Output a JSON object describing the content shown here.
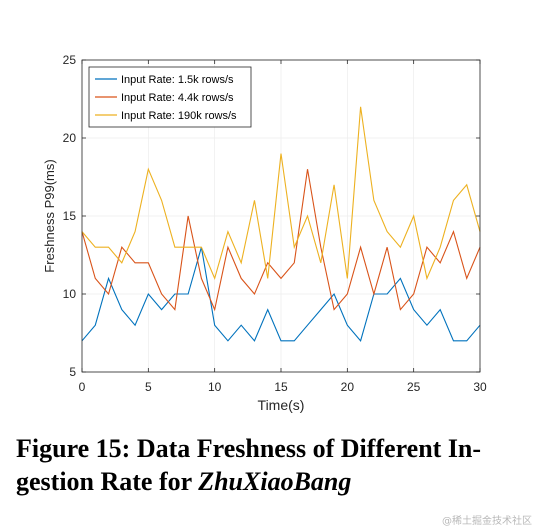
{
  "chart_data": {
    "type": "line",
    "xlabel": "Time(s)",
    "ylabel": "Freshness P99(ms)",
    "xlim": [
      0,
      30
    ],
    "ylim": [
      5,
      25
    ],
    "xticks": [
      0,
      5,
      10,
      15,
      20,
      25,
      30
    ],
    "yticks": [
      5,
      10,
      15,
      20,
      25
    ],
    "grid": true,
    "legend_position": "top-left",
    "x": [
      0,
      1,
      2,
      3,
      4,
      5,
      6,
      7,
      8,
      9,
      10,
      11,
      12,
      13,
      14,
      15,
      16,
      17,
      18,
      19,
      20,
      21,
      22,
      23,
      24,
      25,
      26,
      27,
      28,
      29,
      30
    ],
    "series": [
      {
        "name": "Input Rate: 1.5k rows/s",
        "color": "#0072BD",
        "values": [
          7,
          8,
          11,
          9,
          8,
          10,
          9,
          10,
          10,
          13,
          8,
          7,
          8,
          7,
          9,
          7,
          7,
          8,
          9,
          10,
          8,
          7,
          10,
          10,
          11,
          9,
          8,
          9,
          7,
          7,
          8
        ]
      },
      {
        "name": "Input Rate: 4.4k rows/s",
        "color": "#D95319",
        "values": [
          14,
          11,
          10,
          13,
          12,
          12,
          10,
          9,
          15,
          11,
          9,
          13,
          11,
          10,
          12,
          11,
          12,
          18,
          13,
          9,
          10,
          13,
          10,
          13,
          9,
          10,
          13,
          12,
          14,
          11,
          13
        ]
      },
      {
        "name": "Input Rate: 190k rows/s",
        "color": "#EDB120",
        "values": [
          14,
          13,
          13,
          12,
          14,
          18,
          16,
          13,
          13,
          13,
          11,
          14,
          12,
          16,
          11,
          19,
          13,
          15,
          12,
          17,
          11,
          22,
          16,
          14,
          13,
          15,
          11,
          13,
          16,
          17,
          14
        ]
      }
    ]
  },
  "caption": {
    "prefix": "Figure 15: Data Freshness of Different In-gestion Rate for ",
    "italic": "ZhuXiaoBang"
  },
  "watermark": "@稀土掘金技术社区"
}
